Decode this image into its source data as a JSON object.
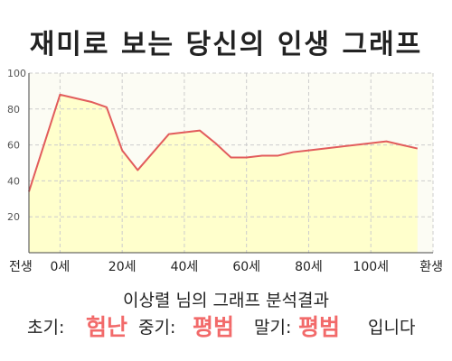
{
  "title": "재미로 보는 당신의 인생 그래프",
  "chart_data": {
    "type": "area",
    "x": [
      -10,
      0,
      10,
      15,
      20,
      25,
      30,
      35,
      40,
      45,
      50,
      55,
      60,
      65,
      70,
      75,
      80,
      85,
      90,
      95,
      100,
      105,
      110,
      115
    ],
    "y": [
      34,
      88,
      84,
      81,
      57,
      46,
      56,
      66,
      67,
      68,
      61,
      53,
      53,
      54,
      54,
      56,
      57,
      58,
      59,
      60,
      61,
      62,
      60,
      58
    ],
    "x_ticks": [
      {
        "value": -10,
        "label": "전생"
      },
      {
        "value": 0,
        "label": "0세"
      },
      {
        "value": 20,
        "label": "20세"
      },
      {
        "value": 40,
        "label": "40세"
      },
      {
        "value": 60,
        "label": "60세"
      },
      {
        "value": 80,
        "label": "80세"
      },
      {
        "value": 100,
        "label": "100세"
      },
      {
        "value": 120,
        "label": "환생"
      }
    ],
    "y_ticks": [
      20,
      40,
      60,
      80,
      100
    ],
    "xlim": [
      -10,
      120
    ],
    "ylim": [
      0,
      100
    ],
    "grid": true,
    "colors": {
      "fill": "#ffffcc",
      "line": "#e25c5c",
      "grid": "#cccccc",
      "axis": "#444444"
    }
  },
  "result": {
    "caption": "이상렬 님의 그래프 분석결과",
    "early_label": "초기:",
    "early_value": "험난",
    "middle_label": "중기:",
    "middle_value": "평범",
    "late_label": "말기:",
    "late_value": "평범",
    "suffix": "입니다",
    "value_color": "#f26a6a"
  }
}
